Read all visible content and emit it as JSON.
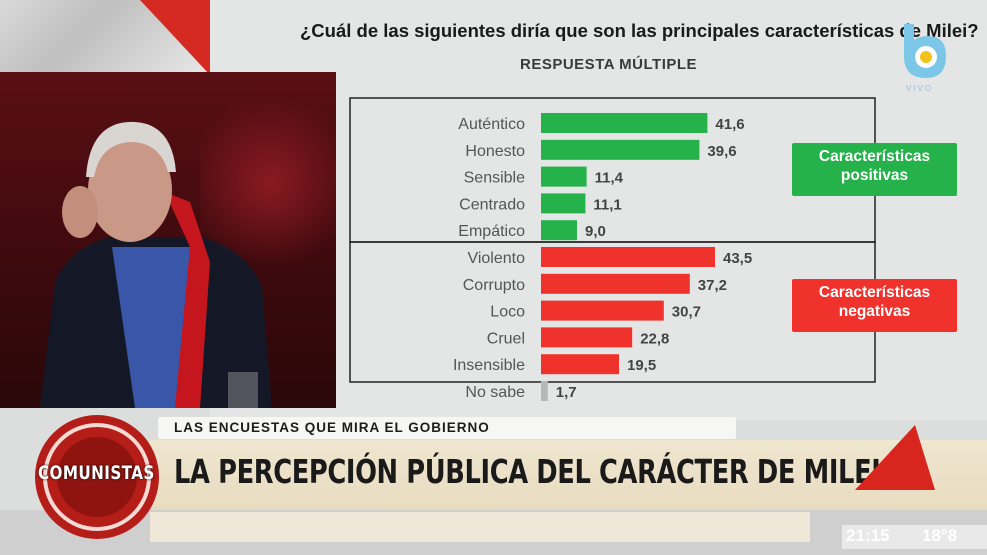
{
  "chart_data": {
    "type": "bar",
    "orientation": "horizontal",
    "title": "¿Cuál de las siguientes diría que son las principales características de Milei?",
    "subtitle": "RESPUESTA MÚLTIPLE",
    "categories": [
      "Auténtico",
      "Honesto",
      "Sensible",
      "Centrado",
      "Empático",
      "Violento",
      "Corrupto",
      "Loco",
      "Cruel",
      "Insensible",
      "No sabe"
    ],
    "values": [
      41.6,
      39.6,
      11.4,
      11.1,
      9.0,
      43.5,
      37.2,
      30.7,
      22.8,
      19.5,
      1.7
    ],
    "value_labels": [
      "41,6",
      "39,6",
      "11,4",
      "11,1",
      "9,0",
      "43,5",
      "37,2",
      "30,7",
      "22,8",
      "19,5",
      "1,7"
    ],
    "groups": [
      "pos",
      "pos",
      "pos",
      "pos",
      "pos",
      "neg",
      "neg",
      "neg",
      "neg",
      "neg",
      "none"
    ],
    "colors": {
      "pos": "#25b24b",
      "neg": "#f0322d",
      "none": "#b8b8b8"
    },
    "xlim": [
      0,
      45
    ],
    "legend": {
      "positive": [
        "Características",
        "positivas"
      ],
      "negative": [
        "Características",
        "negativas"
      ]
    }
  },
  "channel": {
    "logo": "b-channel-logo",
    "live_text": "VIVO"
  },
  "lower_third": {
    "kicker": "LAS ENCUESTAS QUE MIRA EL GOBIERNO",
    "headline": "LA PERCEPCIÓN PÚBLICA DEL CARÁCTER DE MILEI",
    "program": "COMUNISTAS"
  },
  "status": {
    "time": "21:15",
    "temperature": "18°8"
  }
}
